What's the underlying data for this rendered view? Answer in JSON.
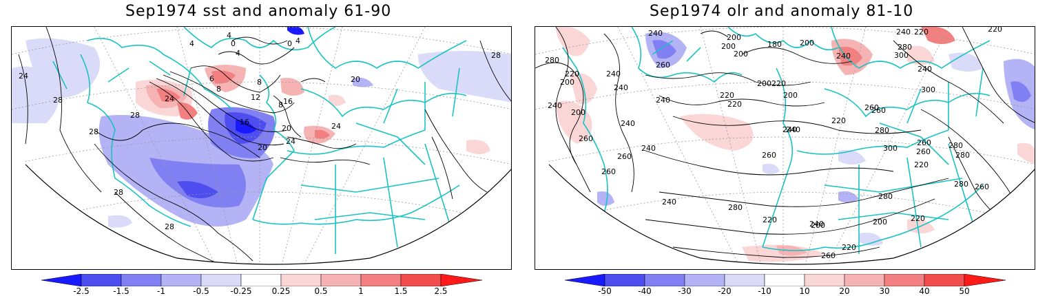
{
  "panels": [
    {
      "title": "Sep1974 sst and anomaly 61-90",
      "colorbar_labels": [
        "-2.5",
        "-1.5",
        "-1",
        "-0.5",
        "-0.25",
        "0.25",
        "0.5",
        "1",
        "1.5",
        "2.5"
      ],
      "contour_labels": [
        "24",
        "28",
        "28",
        "28",
        "28",
        "28",
        "24",
        "20",
        "16",
        "12",
        "8",
        "8",
        "6",
        "4",
        "4",
        "8",
        "16",
        "20",
        "24",
        "24",
        "4",
        "0",
        "4",
        "0",
        "20",
        "28"
      ]
    },
    {
      "title": "Sep1974 olr and anomaly 81-10",
      "colorbar_labels": [
        "-50",
        "-40",
        "-30",
        "-20",
        "-10",
        "10",
        "20",
        "30",
        "40",
        "50"
      ],
      "contour_labels": [
        "240",
        "260",
        "200",
        "200",
        "200",
        "180",
        "200",
        "240",
        "220",
        "280",
        "300",
        "220",
        "280",
        "220",
        "200",
        "240",
        "240",
        "200",
        "220",
        "200",
        "240",
        "220",
        "220",
        "240",
        "260",
        "240",
        "300",
        "240",
        "220",
        "260",
        "240",
        "200",
        "240",
        "260",
        "260",
        "260",
        "240",
        "280",
        "300",
        "260",
        "280",
        "260",
        "280",
        "240",
        "260",
        "280",
        "220",
        "240",
        "200",
        "200",
        "220",
        "240",
        "220",
        "260",
        "280",
        "260",
        "220",
        "280"
      ]
    }
  ],
  "colors": {
    "coast": "#19c3c3",
    "contour": "#000000",
    "neg": [
      "#1a1aff",
      "#4d4df0",
      "#8080f2",
      "#b3b3f5",
      "#dadaf9"
    ],
    "pos": [
      "#fad6d6",
      "#f5b3b3",
      "#f28080",
      "#f24d4d",
      "#ff1a1a"
    ]
  }
}
